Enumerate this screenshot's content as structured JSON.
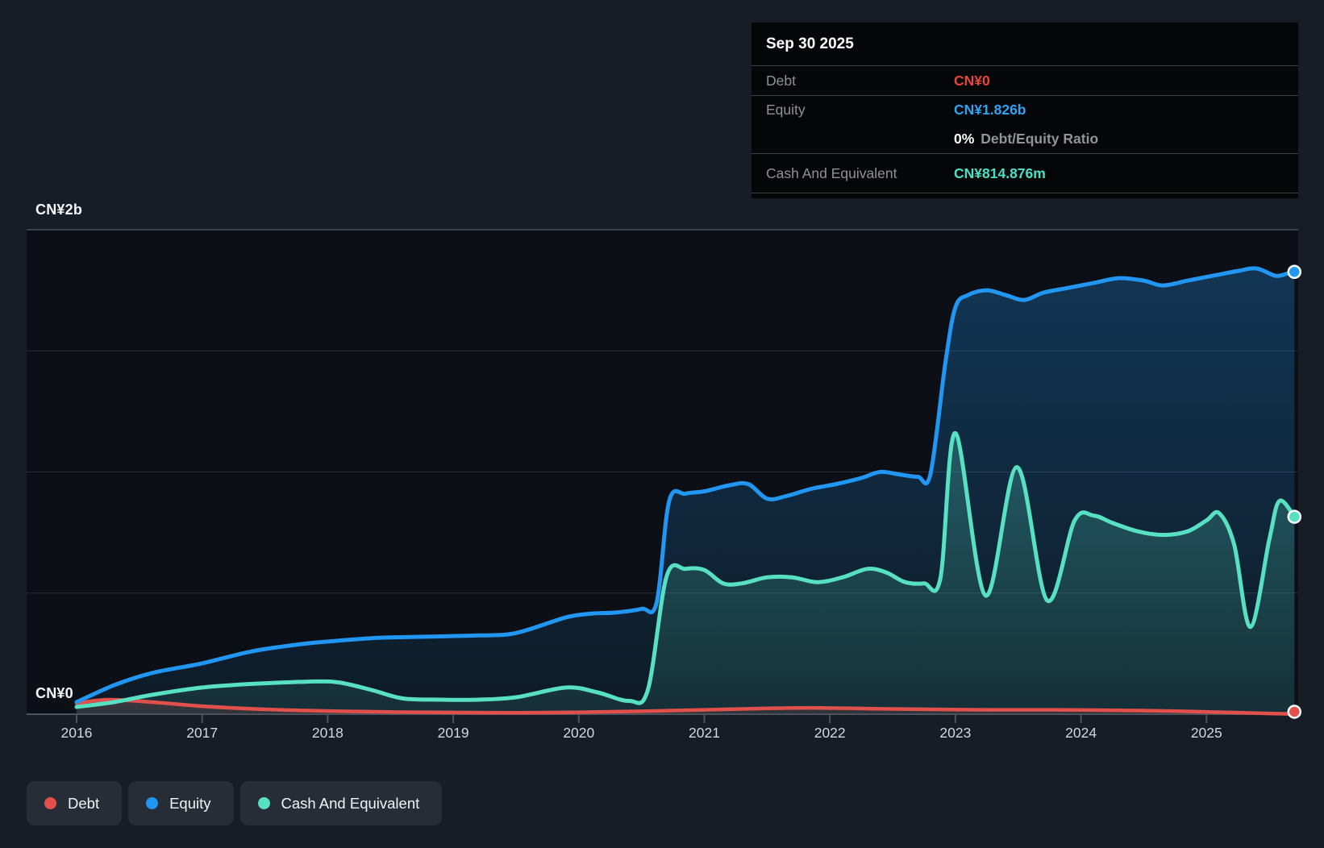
{
  "y_axis": {
    "top_label": "CN¥2b",
    "zero_label": "CN¥0"
  },
  "x_axis": {
    "years": [
      "2016",
      "2017",
      "2018",
      "2019",
      "2020",
      "2021",
      "2022",
      "2023",
      "2024",
      "2025"
    ]
  },
  "tooltip": {
    "date": "Sep 30 2025",
    "debt_label": "Debt",
    "debt_value": "CN¥0",
    "equity_label": "Equity",
    "equity_value": "CN¥1.826b",
    "ratio_value": "0%",
    "ratio_label": "Debt/Equity Ratio",
    "cash_label": "Cash And Equivalent",
    "cash_value": "CN¥814.876m"
  },
  "legend": {
    "items": [
      {
        "label": "Debt",
        "color": "#e2504c"
      },
      {
        "label": "Equity",
        "color": "#2196f3"
      },
      {
        "label": "Cash And Equivalent",
        "color": "#57e0c2"
      }
    ]
  },
  "colors": {
    "page_bg": "#171c26",
    "plot_bg": "#0c1016",
    "tooltip_bg": "#050608",
    "gridline": "#272e37",
    "gridline_top": "#3a414b",
    "axis_line": "#4c525c",
    "debt_value_text": "#e8453c",
    "equity_value_text": "#2ea4f5",
    "cash_value_text": "#4ce0c4"
  },
  "chart_data": {
    "type": "area",
    "title": "Debt to Equity History and Analysis",
    "x_axis_ticks": [
      2016,
      2017,
      2018,
      2019,
      2020,
      2021,
      2022,
      2023,
      2024,
      2025
    ],
    "x_range": [
      2016,
      2025.75
    ],
    "y_unit": "CN¥ billions",
    "ylim": [
      0,
      2
    ],
    "gridline_step_b": 0.5,
    "grid": true,
    "legend_position": "bottom-left",
    "series": [
      {
        "name": "Debt",
        "color": "#e2504c",
        "end_marker": true,
        "x": [
          2016.0,
          2016.25,
          2016.6,
          2017.0,
          2017.5,
          2018.0,
          2018.5,
          2019.0,
          2019.5,
          2020.0,
          2020.5,
          2021.0,
          2021.5,
          2021.9,
          2022.3,
          2022.8,
          2023.3,
          2023.8,
          2024.3,
          2024.8,
          2025.2,
          2025.5,
          2025.7
        ],
        "y": [
          0.045,
          0.06,
          0.05,
          0.033,
          0.02,
          0.013,
          0.009,
          0.007,
          0.006,
          0.008,
          0.012,
          0.018,
          0.024,
          0.026,
          0.023,
          0.02,
          0.018,
          0.018,
          0.016,
          0.012,
          0.007,
          0.003,
          0.001
        ]
      },
      {
        "name": "Equity",
        "color": "#2196f3",
        "end_marker": true,
        "x": [
          2016.0,
          2016.3,
          2016.6,
          2017.0,
          2017.4,
          2017.8,
          2018.0,
          2018.4,
          2018.8,
          2019.2,
          2019.5,
          2019.9,
          2020.1,
          2020.3,
          2020.5,
          2020.62,
          2020.72,
          2020.85,
          2021.0,
          2021.2,
          2021.35,
          2021.5,
          2021.65,
          2021.85,
          2022.05,
          2022.25,
          2022.4,
          2022.55,
          2022.7,
          2022.8,
          2022.92,
          2023.0,
          2023.1,
          2023.25,
          2023.4,
          2023.55,
          2023.7,
          2023.9,
          2024.1,
          2024.3,
          2024.5,
          2024.65,
          2024.85,
          2025.05,
          2025.25,
          2025.4,
          2025.55,
          2025.65,
          2025.7
        ],
        "y": [
          0.05,
          0.12,
          0.17,
          0.21,
          0.26,
          0.29,
          0.3,
          0.315,
          0.32,
          0.325,
          0.335,
          0.4,
          0.415,
          0.42,
          0.435,
          0.46,
          0.88,
          0.91,
          0.92,
          0.945,
          0.95,
          0.89,
          0.9,
          0.93,
          0.95,
          0.975,
          1.0,
          0.99,
          0.98,
          0.99,
          1.45,
          1.68,
          1.73,
          1.75,
          1.73,
          1.71,
          1.74,
          1.76,
          1.78,
          1.8,
          1.79,
          1.77,
          1.79,
          1.81,
          1.83,
          1.84,
          1.81,
          1.82,
          1.826
        ]
      },
      {
        "name": "Cash And Equivalent",
        "color": "#57e0c2",
        "end_marker": true,
        "x": [
          2016.0,
          2016.3,
          2016.6,
          2017.0,
          2017.4,
          2017.9,
          2018.1,
          2018.35,
          2018.6,
          2018.9,
          2019.2,
          2019.5,
          2019.9,
          2020.15,
          2020.4,
          2020.55,
          2020.7,
          2020.85,
          2021.0,
          2021.15,
          2021.3,
          2021.5,
          2021.7,
          2021.9,
          2022.1,
          2022.3,
          2022.45,
          2022.6,
          2022.75,
          2022.88,
          2023.0,
          2023.24,
          2023.49,
          2023.73,
          2023.95,
          2024.1,
          2024.25,
          2024.45,
          2024.65,
          2024.85,
          2025.0,
          2025.1,
          2025.22,
          2025.35,
          2025.5,
          2025.58,
          2025.7
        ],
        "y": [
          0.03,
          0.05,
          0.08,
          0.11,
          0.125,
          0.135,
          0.13,
          0.1,
          0.065,
          0.06,
          0.06,
          0.07,
          0.11,
          0.09,
          0.055,
          0.1,
          0.57,
          0.6,
          0.595,
          0.54,
          0.54,
          0.565,
          0.565,
          0.545,
          0.565,
          0.6,
          0.585,
          0.545,
          0.54,
          0.56,
          1.16,
          0.49,
          1.02,
          0.47,
          0.8,
          0.82,
          0.79,
          0.755,
          0.74,
          0.755,
          0.8,
          0.83,
          0.7,
          0.36,
          0.72,
          0.88,
          0.815
        ]
      }
    ],
    "tooltip_point": {
      "date": "Sep 30 2025",
      "debt_b": 0,
      "equity_b": 1.826,
      "cash_b": 0.814876,
      "debt_equity_ratio_pct": 0
    }
  }
}
